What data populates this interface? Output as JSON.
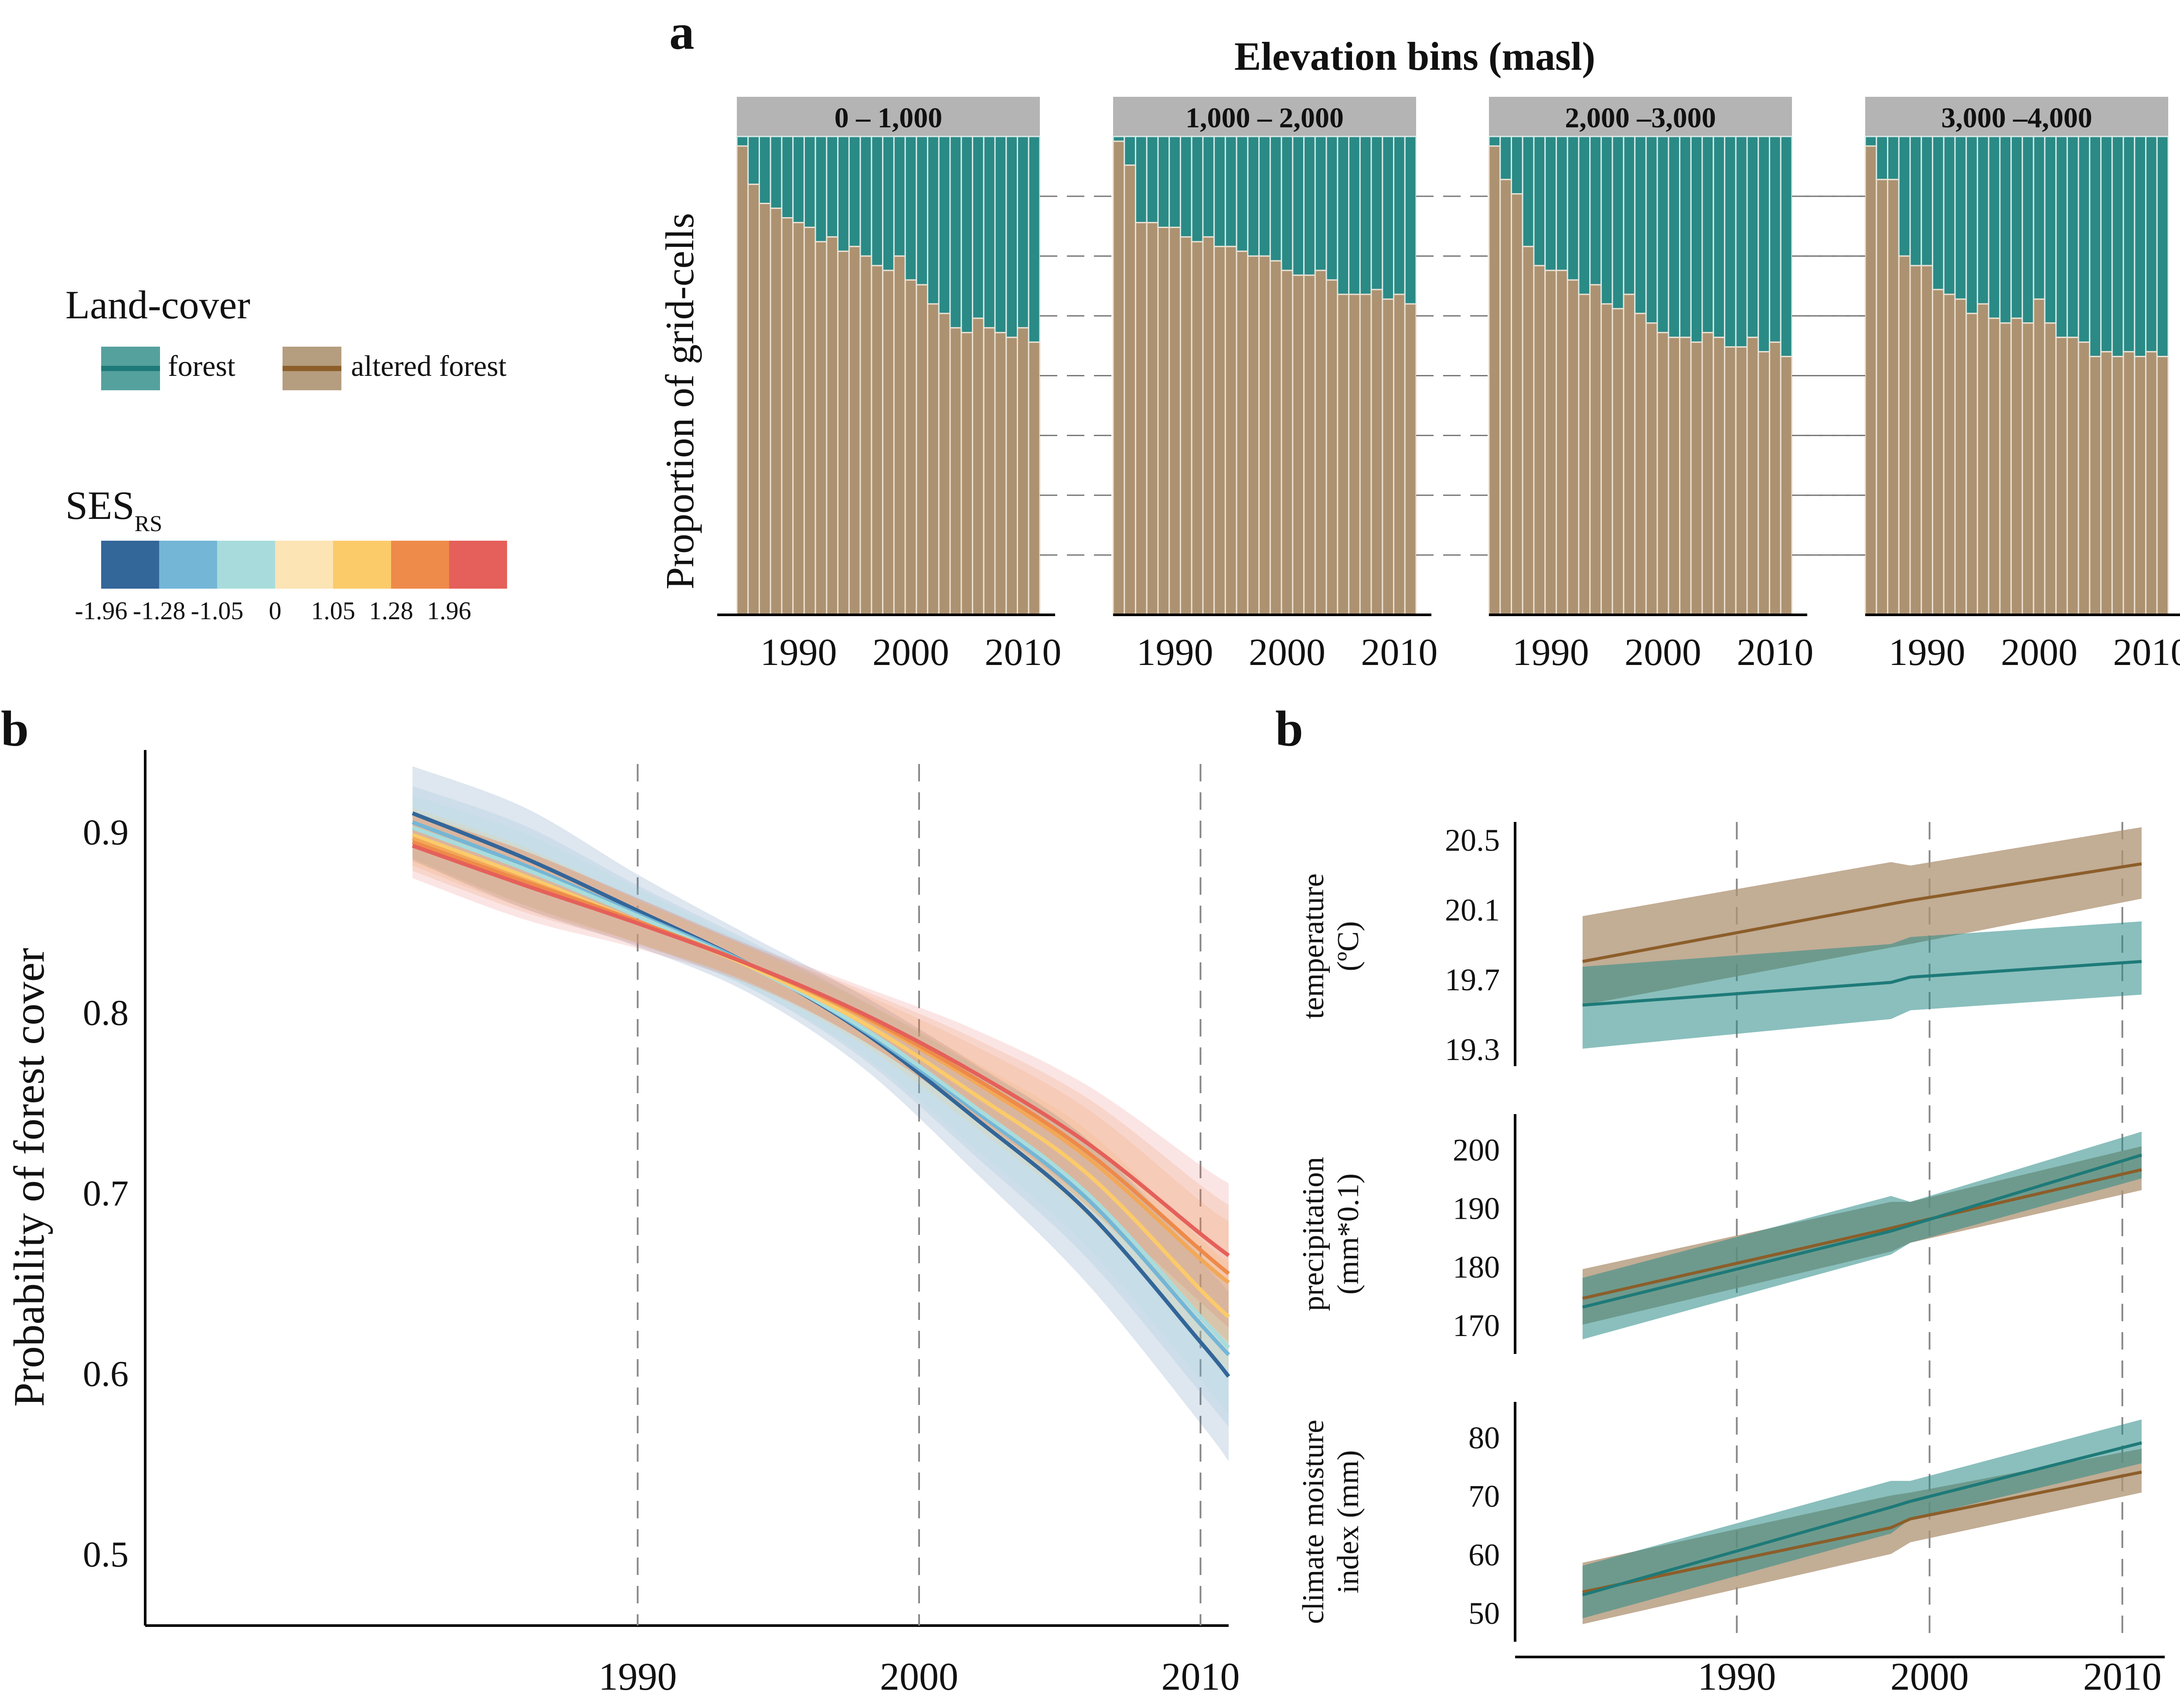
{
  "panel_labels": {
    "a": "a",
    "b_left": "b",
    "b_right": "b"
  },
  "legend": {
    "landcover_title": "Land-cover",
    "forest_label": "forest",
    "altered_label": "altered forest",
    "ses_title": "SES",
    "ses_subscript": "RS",
    "ses_ticks": [
      "-1.96",
      "-1.28",
      "-1.05",
      "0",
      "1.05",
      "1.28",
      "1.96"
    ],
    "ses_colors": [
      "#336699",
      "#74B6D6",
      "#A8DCDC",
      "#FCE4B4",
      "#FBCB6A",
      "#EE8A4A",
      "#E5605A"
    ]
  },
  "colors": {
    "forest": "#2A8A86",
    "altered": "#AD9271",
    "altered_line": "#8C5E2A",
    "forest_line": "#1E7A78",
    "strip": "#B4B4B4"
  },
  "chart_data": [
    {
      "type": "bar",
      "stacked": true,
      "title": "Elevation bins (masl)",
      "ylabel": "Proportion of grid-cells",
      "x_ticks": [
        "1990",
        "2000",
        "2010"
      ],
      "years": [
        1985,
        1986,
        1987,
        1988,
        1989,
        1990,
        1991,
        1992,
        1993,
        1994,
        1995,
        1996,
        1997,
        1998,
        1999,
        2000,
        2001,
        2002,
        2003,
        2004,
        2005,
        2006,
        2007,
        2008,
        2009,
        2010,
        2011
      ],
      "series_names": [
        "forest",
        "altered forest"
      ],
      "facets": [
        {
          "label": "0 – 1,000",
          "altered": [
            0.98,
            0.9,
            0.86,
            0.85,
            0.83,
            0.82,
            0.81,
            0.78,
            0.79,
            0.76,
            0.77,
            0.75,
            0.73,
            0.72,
            0.75,
            0.7,
            0.69,
            0.65,
            0.63,
            0.6,
            0.59,
            0.62,
            0.6,
            0.59,
            0.58,
            0.6,
            0.57
          ]
        },
        {
          "label": "1,000 – 2,000",
          "altered": [
            0.99,
            0.94,
            0.82,
            0.82,
            0.81,
            0.81,
            0.79,
            0.78,
            0.79,
            0.77,
            0.77,
            0.76,
            0.75,
            0.75,
            0.74,
            0.72,
            0.71,
            0.71,
            0.72,
            0.7,
            0.67,
            0.67,
            0.67,
            0.68,
            0.66,
            0.67,
            0.65
          ]
        },
        {
          "label": "2,000 –3,000",
          "altered": [
            0.98,
            0.91,
            0.88,
            0.77,
            0.73,
            0.72,
            0.72,
            0.7,
            0.67,
            0.69,
            0.65,
            0.64,
            0.67,
            0.63,
            0.61,
            0.59,
            0.58,
            0.58,
            0.57,
            0.59,
            0.58,
            0.56,
            0.56,
            0.58,
            0.55,
            0.57,
            0.54
          ]
        },
        {
          "label": "3,000 –4,000",
          "altered": [
            0.98,
            0.91,
            0.91,
            0.75,
            0.73,
            0.73,
            0.68,
            0.67,
            0.66,
            0.63,
            0.65,
            0.62,
            0.61,
            0.62,
            0.61,
            0.66,
            0.61,
            0.58,
            0.58,
            0.57,
            0.54,
            0.55,
            0.54,
            0.55,
            0.54,
            0.55,
            0.54
          ]
        }
      ]
    },
    {
      "type": "line",
      "ylabel": "Probability of forest cover",
      "x": [
        1982,
        1986,
        1990,
        1994,
        1998,
        2002,
        2006,
        2010,
        2011
      ],
      "xlim": [
        1972.5,
        2011
      ],
      "ylim": [
        0.46,
        0.945
      ],
      "x_ticks": [
        "1990",
        "2000",
        "2010"
      ],
      "y_ticks": [
        "0.5",
        "0.6",
        "0.7",
        "0.8",
        "0.9"
      ],
      "series": [
        {
          "color": "#336699",
          "values": [
            0.91,
            0.885,
            0.856,
            0.826,
            0.789,
            0.741,
            0.689,
            0.617,
            0.598
          ],
          "band": [
            0.026,
            0.028,
            0.02,
            0.016,
            0.02,
            0.03,
            0.04,
            0.045,
            0.047
          ]
        },
        {
          "color": "#74B6D6",
          "values": [
            0.905,
            0.881,
            0.854,
            0.826,
            0.79,
            0.745,
            0.696,
            0.627,
            0.61
          ],
          "band": [
            0.02,
            0.022,
            0.016,
            0.013,
            0.016,
            0.025,
            0.033,
            0.038,
            0.04
          ]
        },
        {
          "color": "#A8DCDC",
          "values": [
            0.902,
            0.879,
            0.853,
            0.825,
            0.791,
            0.747,
            0.699,
            0.631,
            0.614
          ],
          "band": [
            0.018,
            0.02,
            0.015,
            0.012,
            0.015,
            0.023,
            0.03,
            0.035,
            0.037
          ]
        },
        {
          "color": "#FBCB6A",
          "values": [
            0.898,
            0.875,
            0.85,
            0.825,
            0.794,
            0.754,
            0.71,
            0.646,
            0.631
          ],
          "band": [
            0.015,
            0.016,
            0.012,
            0.01,
            0.012,
            0.018,
            0.024,
            0.028,
            0.03
          ]
        },
        {
          "color": "#F2A858",
          "values": [
            0.896,
            0.873,
            0.85,
            0.826,
            0.797,
            0.761,
            0.719,
            0.663,
            0.65
          ],
          "band": [
            0.015,
            0.016,
            0.012,
            0.01,
            0.013,
            0.02,
            0.027,
            0.032,
            0.034
          ]
        },
        {
          "color": "#EE8A4A",
          "values": [
            0.894,
            0.872,
            0.85,
            0.826,
            0.798,
            0.763,
            0.722,
            0.668,
            0.655
          ],
          "band": [
            0.016,
            0.017,
            0.013,
            0.01,
            0.014,
            0.022,
            0.03,
            0.036,
            0.038
          ]
        },
        {
          "color": "#E5605A",
          "values": [
            0.892,
            0.87,
            0.849,
            0.826,
            0.799,
            0.766,
            0.727,
            0.677,
            0.665
          ],
          "band": [
            0.018,
            0.019,
            0.014,
            0.011,
            0.015,
            0.024,
            0.032,
            0.038,
            0.04
          ]
        }
      ]
    },
    {
      "type": "line",
      "ylabel": "temperature (ºC)",
      "x": [
        1982,
        1998,
        1999,
        2011
      ],
      "xlim": [
        1978.5,
        2012.2
      ],
      "ylim": [
        19.2,
        20.6
      ],
      "x_ticks": [
        "1990",
        "2000",
        "2010"
      ],
      "y_ticks": [
        "19.3",
        "19.7",
        "20.1",
        "20.5"
      ],
      "series": [
        {
          "name": "altered forest",
          "values": [
            19.8,
            20.13,
            20.15,
            20.36
          ],
          "lower": [
            19.55,
            19.88,
            19.9,
            20.16
          ],
          "upper": [
            20.06,
            20.37,
            20.35,
            20.57
          ]
        },
        {
          "name": "forest",
          "values": [
            19.55,
            19.68,
            19.71,
            19.8
          ],
          "lower": [
            19.3,
            19.47,
            19.52,
            19.61
          ],
          "upper": [
            19.77,
            19.9,
            19.94,
            20.03
          ]
        }
      ]
    },
    {
      "type": "line",
      "ylabel": "precipitation (mm*0.1)",
      "x": [
        1982,
        1998,
        1999,
        2011
      ],
      "xlim": [
        1978.5,
        2012.2
      ],
      "ylim": [
        165,
        206
      ],
      "x_ticks": [
        "1990",
        "2000",
        "2010"
      ],
      "y_ticks": [
        "170",
        "180",
        "190",
        "200"
      ],
      "series": [
        {
          "name": "altered forest",
          "values": [
            174.5,
            186.5,
            187.3,
            196.5
          ],
          "lower": [
            170.0,
            182.5,
            184.0,
            193.0
          ],
          "upper": [
            179.5,
            191.0,
            191.0,
            200.5
          ]
        },
        {
          "name": "forest",
          "values": [
            173.0,
            186.0,
            187.0,
            199.0
          ],
          "lower": [
            167.5,
            182.0,
            184.0,
            195.0
          ],
          "upper": [
            178.0,
            192.0,
            191.0,
            203.0
          ]
        }
      ]
    },
    {
      "type": "line",
      "ylabel": "climate moisture index (mm)",
      "x": [
        1982,
        1998,
        1999,
        2011
      ],
      "xlim": [
        1978.5,
        2012.2
      ],
      "ylim": [
        45,
        86
      ],
      "x_ticks": [
        "1990",
        "2000",
        "2010"
      ],
      "y_ticks": [
        "50",
        "60",
        "70",
        "80"
      ],
      "series": [
        {
          "name": "altered forest",
          "values": [
            53.5,
            64.5,
            66.0,
            74.0
          ],
          "lower": [
            48.0,
            60.0,
            62.0,
            70.5
          ],
          "upper": [
            58.5,
            70.0,
            70.5,
            78.0
          ]
        },
        {
          "name": "forest",
          "values": [
            53.0,
            68.0,
            69.0,
            79.0
          ],
          "lower": [
            49.0,
            63.5,
            66.0,
            75.5
          ],
          "upper": [
            58.0,
            72.5,
            72.5,
            83.0
          ]
        }
      ]
    }
  ]
}
